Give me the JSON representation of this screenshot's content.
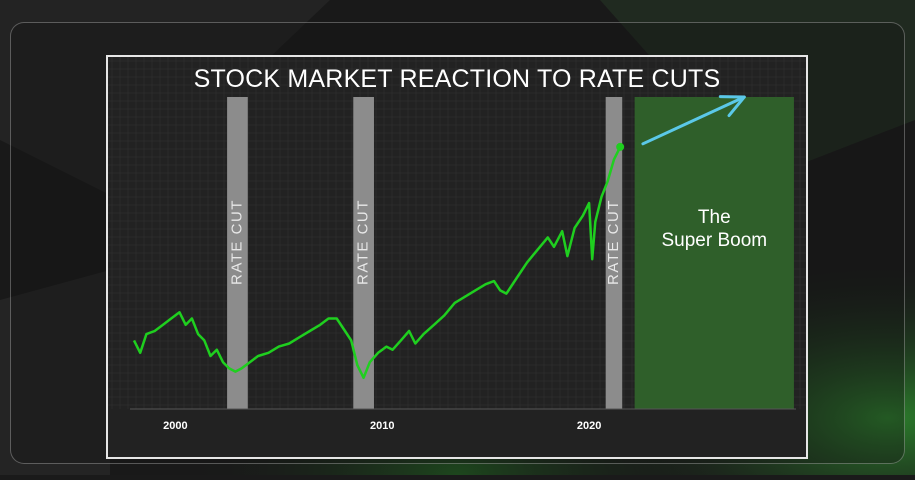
{
  "chart_data": {
    "type": "line",
    "title": "STOCK MARKET REACTION TO RATE CUTS",
    "xlabel": "",
    "ylabel": "",
    "x_ticks": [
      2000,
      2010,
      2020
    ],
    "xlim": [
      1998,
      2030
    ],
    "ylim": [
      0,
      100
    ],
    "grid": true,
    "series": [
      {
        "color": "#1fcf1f",
        "points": [
          [
            1998.0,
            22
          ],
          [
            1998.3,
            18
          ],
          [
            1998.6,
            24
          ],
          [
            1999.0,
            25
          ],
          [
            1999.4,
            27
          ],
          [
            1999.8,
            29
          ],
          [
            2000.2,
            31
          ],
          [
            2000.5,
            27
          ],
          [
            2000.8,
            29
          ],
          [
            2001.1,
            24
          ],
          [
            2001.4,
            22
          ],
          [
            2001.7,
            17
          ],
          [
            2002.0,
            19
          ],
          [
            2002.3,
            15
          ],
          [
            2002.6,
            13
          ],
          [
            2002.9,
            12
          ],
          [
            2003.2,
            13
          ],
          [
            2003.6,
            15
          ],
          [
            2004.0,
            17
          ],
          [
            2004.5,
            18
          ],
          [
            2005.0,
            20
          ],
          [
            2005.5,
            21
          ],
          [
            2006.0,
            23
          ],
          [
            2006.5,
            25
          ],
          [
            2007.0,
            27
          ],
          [
            2007.4,
            29
          ],
          [
            2007.8,
            29
          ],
          [
            2008.2,
            25
          ],
          [
            2008.5,
            22
          ],
          [
            2008.8,
            14
          ],
          [
            2009.1,
            10
          ],
          [
            2009.4,
            15
          ],
          [
            2009.8,
            18
          ],
          [
            2010.2,
            20
          ],
          [
            2010.5,
            19
          ],
          [
            2010.9,
            22
          ],
          [
            2011.3,
            25
          ],
          [
            2011.6,
            21
          ],
          [
            2012.0,
            24
          ],
          [
            2012.5,
            27
          ],
          [
            2013.0,
            30
          ],
          [
            2013.5,
            34
          ],
          [
            2014.0,
            36
          ],
          [
            2014.5,
            38
          ],
          [
            2015.0,
            40
          ],
          [
            2015.4,
            41
          ],
          [
            2015.7,
            38
          ],
          [
            2016.0,
            37
          ],
          [
            2016.5,
            42
          ],
          [
            2017.0,
            47
          ],
          [
            2017.5,
            51
          ],
          [
            2018.0,
            55
          ],
          [
            2018.3,
            52
          ],
          [
            2018.7,
            57
          ],
          [
            2018.95,
            49
          ],
          [
            2019.3,
            58
          ],
          [
            2019.7,
            62
          ],
          [
            2020.0,
            66
          ],
          [
            2020.15,
            48
          ],
          [
            2020.3,
            60
          ],
          [
            2020.6,
            68
          ],
          [
            2020.9,
            73
          ],
          [
            2021.2,
            80
          ],
          [
            2021.5,
            84
          ]
        ]
      }
    ],
    "shaded_regions": [
      {
        "label": "RATE CUT",
        "x_range": [
          2002.5,
          2003.5
        ],
        "color": "#8c8c8c"
      },
      {
        "label": "RATE CUT",
        "x_range": [
          2008.6,
          2009.6
        ],
        "color": "#8c8c8c"
      },
      {
        "label": "RATE CUT",
        "x_range": [
          2020.8,
          2021.6
        ],
        "color": "#8c8c8c"
      }
    ],
    "highlight_region": {
      "x_range": [
        2022.2,
        2029.9
      ],
      "color": "#2f5f2a",
      "label_lines": [
        "The",
        "Super Boom"
      ]
    },
    "arrow": {
      "from": [
        2022.6,
        85
      ],
      "to": [
        2027.5,
        100
      ],
      "color": "#5bc8e8"
    }
  }
}
